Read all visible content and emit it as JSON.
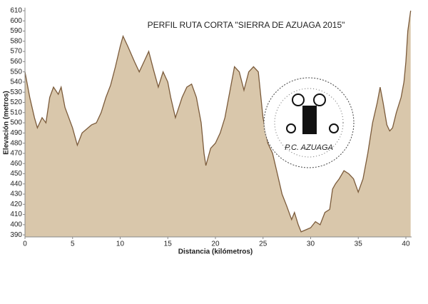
{
  "chart_data": {
    "type": "area",
    "title": "PERFIL RUTA CORTA \"SIERRA DE AZUAGA 2015\"",
    "x_label": "Distancia (kilómetros)",
    "y_label": "Elevación (metros)",
    "logo_text": "P.C. AZUAGA",
    "fill_color": "#d9c7ab",
    "line_color": "#7b5b3b",
    "x": [
      0,
      0.5,
      1,
      1.3,
      1.8,
      2.2,
      2.6,
      3,
      3.5,
      3.8,
      4.2,
      5,
      5.5,
      6,
      7,
      7.5,
      8,
      8.5,
      9,
      9.5,
      10,
      10.3,
      10.8,
      11.5,
      12,
      12.5,
      13,
      13.5,
      14,
      14.5,
      15,
      15.3,
      15.8,
      16.5,
      17,
      17.5,
      18,
      18.5,
      18.8,
      19,
      19.5,
      20,
      20.5,
      21,
      21.5,
      22,
      22.5,
      23,
      23.5,
      24,
      24.5,
      25,
      25.5,
      26,
      26.5,
      27,
      27.5,
      28,
      28.3,
      28.7,
      29,
      29.5,
      30,
      30.5,
      31,
      31.5,
      32,
      32.3,
      32.6,
      33,
      33.5,
      34,
      34.5,
      35,
      35.5,
      36,
      36.5,
      37,
      37.3,
      37.6,
      38,
      38.3,
      38.6,
      39,
      39.5,
      39.8,
      40,
      40.2,
      40.5
    ],
    "values": [
      550,
      525,
      505,
      495,
      505,
      500,
      525,
      535,
      528,
      535,
      515,
      495,
      478,
      490,
      498,
      500,
      510,
      525,
      537,
      555,
      575,
      585,
      575,
      560,
      550,
      560,
      570,
      552,
      535,
      550,
      540,
      525,
      505,
      525,
      535,
      538,
      525,
      500,
      470,
      458,
      475,
      480,
      490,
      505,
      530,
      555,
      550,
      532,
      550,
      555,
      550,
      505,
      480,
      470,
      450,
      430,
      418,
      405,
      412,
      400,
      393,
      395,
      397,
      403,
      400,
      412,
      415,
      435,
      440,
      445,
      453,
      450,
      445,
      432,
      445,
      470,
      500,
      520,
      535,
      520,
      498,
      492,
      495,
      510,
      525,
      540,
      560,
      590,
      610
    ],
    "xlim": [
      0,
      40.6
    ],
    "xticks": [
      0,
      5,
      10,
      15,
      20,
      25,
      30,
      35,
      40
    ],
    "ylim": [
      388,
      613
    ],
    "yticks": [
      390,
      400,
      410,
      420,
      430,
      440,
      450,
      460,
      470,
      480,
      490,
      500,
      510,
      520,
      530,
      540,
      550,
      560,
      570,
      580,
      590,
      600,
      610
    ]
  }
}
